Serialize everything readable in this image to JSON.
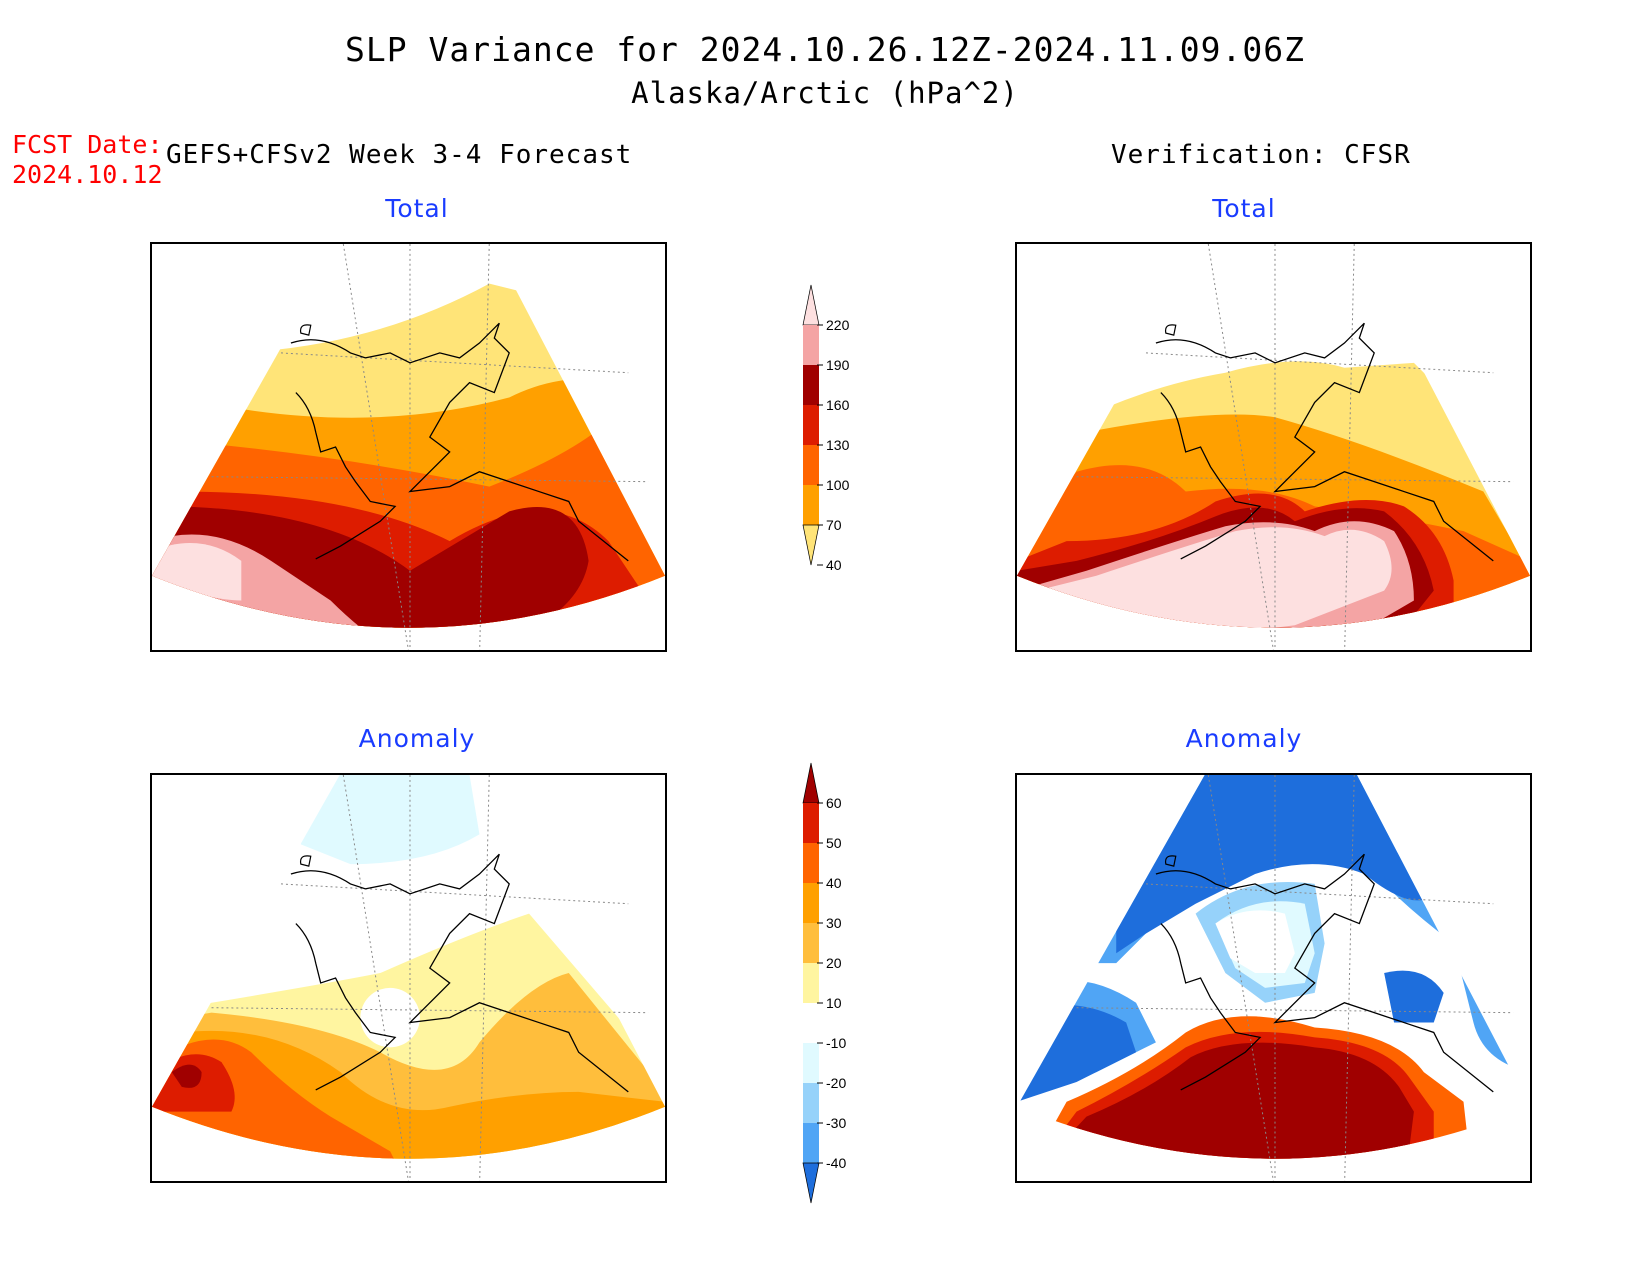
{
  "header": {
    "title": "SLP Variance for 2024.10.26.12Z-2024.11.09.06Z",
    "subtitle": "Alaska/Arctic (hPa^2)",
    "fcst_label": "FCST Date:",
    "fcst_date": "2024.10.12",
    "left_column": "GEFS+CFSv2 Week 3-4 Forecast",
    "right_column": "Verification: CFSR"
  },
  "panels": {
    "fcst_total": "Total",
    "verif_total": "Total",
    "fcst_anomaly": "Anomaly",
    "verif_anomaly": "Anomaly"
  },
  "colorbars": {
    "total": {
      "labels": [
        "220",
        "190",
        "160",
        "130",
        "100",
        "70",
        "40"
      ],
      "colors": [
        "#fde0e0",
        "#f4a4a4",
        "#a00000",
        "#dd1c00",
        "#ff6400",
        "#ffa000",
        "#ffe478"
      ]
    },
    "anomaly": {
      "labels": [
        "60",
        "50",
        "40",
        "30",
        "20",
        "10",
        "-10",
        "-20",
        "-30",
        "-40"
      ],
      "colors": [
        "#a00000",
        "#dd1c00",
        "#ff6400",
        "#ffa000",
        "#ffbe3c",
        "#fff5a0",
        "#ffffff",
        "#e0faff",
        "#96d2fa",
        "#50a5f5",
        "#1e6edc"
      ]
    }
  }
}
